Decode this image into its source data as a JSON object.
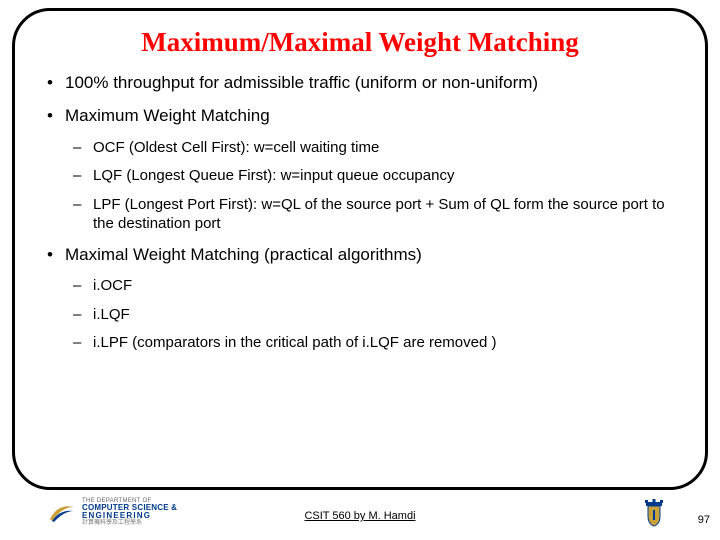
{
  "title": {
    "text": "Maximum/Maximal Weight Matching",
    "fontsize": 27
  },
  "body": {
    "fontsize_b1": 17,
    "fontsize_b2": 15
  },
  "bullets": [
    {
      "level": 1,
      "text": "100% throughput for admissible traffic (uniform or non-uniform)"
    },
    {
      "level": 1,
      "text": "Maximum Weight Matching"
    },
    {
      "level": 2,
      "text": "OCF (Oldest Cell First): w=cell waiting time"
    },
    {
      "level": 2,
      "text": "LQF (Longest Queue First): w=input queue occupancy"
    },
    {
      "level": 2,
      "text": "LPF (Longest Port First): w=QL of the source port + Sum of QL form the source port to the destination port"
    },
    {
      "level": 1,
      "text": "Maximal Weight Matching (practical algorithms)"
    },
    {
      "level": 2,
      "text": "i.OCF"
    },
    {
      "level": 2,
      "text": "i.LQF"
    },
    {
      "level": 2,
      "text": "i.LPF (comparators in the critical path of i.LQF  are removed )"
    }
  ],
  "footer": {
    "dept_line1": "THE DEPARTMENT OF",
    "dept_line2": "COMPUTER SCIENCE &",
    "dept_line3": "ENGINEERING",
    "dept_line4": "計算機科學及工程學系",
    "center": "CSIT 560 by M. Hamdi",
    "page": "97"
  },
  "colors": {
    "title": "#ff0000",
    "border": "#000000",
    "text": "#000000",
    "logo_blue": "#003a8c",
    "logo_gold": "#c9a13b"
  }
}
